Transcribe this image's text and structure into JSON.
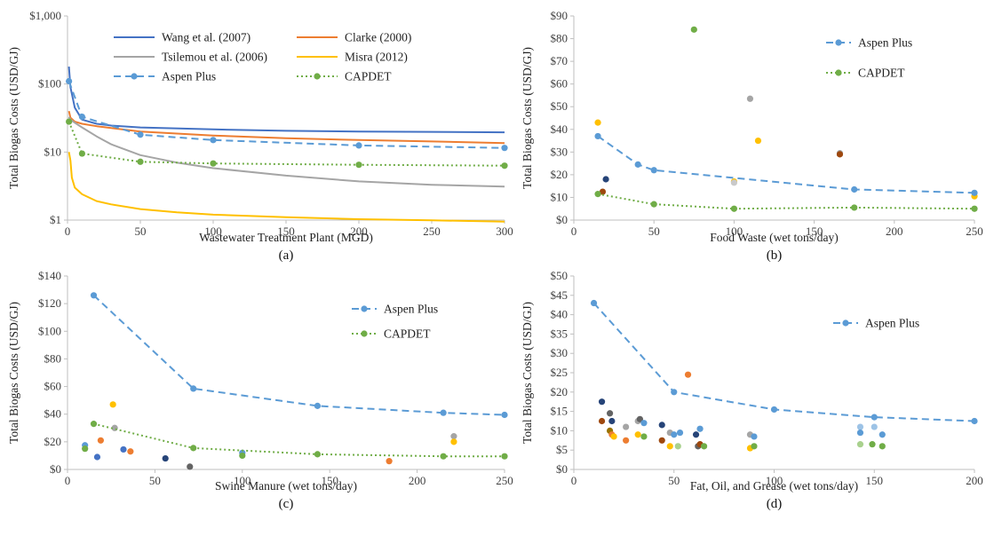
{
  "chart_data": [
    {
      "type": "line",
      "panel_label": "(a)",
      "xlabel": "Wastewater Treatment Plant (MGD)",
      "ylabel": "Total Biogas Costs (USD/GJ)",
      "log_y": true,
      "xlim": [
        0,
        300
      ],
      "ylim": [
        1,
        1000
      ],
      "x_ticks": [
        "0",
        "50",
        "100",
        "150",
        "200",
        "250",
        "300"
      ],
      "y_ticks": [
        "$1",
        "$10",
        "$100",
        "$1,000"
      ],
      "legend_position": "top",
      "grid": false,
      "series": [
        {
          "name": "Wang et al. (2007)",
          "style": "solid",
          "color": "#4472c4",
          "x": [
            1,
            2,
            5,
            10,
            20,
            30,
            50,
            100,
            150,
            200,
            250,
            300
          ],
          "y": [
            180,
            90,
            45,
            30,
            26,
            24.5,
            23,
            21.5,
            20.5,
            20,
            19.8,
            19.5
          ]
        },
        {
          "name": "Clarke (2000)",
          "style": "solid",
          "color": "#ed7d31",
          "x": [
            1,
            2,
            5,
            10,
            20,
            30,
            50,
            100,
            150,
            200,
            250,
            300
          ],
          "y": [
            40,
            32,
            28,
            26,
            24,
            22.5,
            20,
            17.5,
            16,
            15,
            14.3,
            13.5
          ]
        },
        {
          "name": "Tsilemou et al. (2006)",
          "style": "solid",
          "color": "#a5a5a5",
          "x": [
            1,
            2,
            5,
            10,
            20,
            30,
            50,
            75,
            100,
            150,
            200,
            250,
            300
          ],
          "y": [
            33,
            30,
            27,
            23,
            17,
            13,
            9,
            7,
            5.8,
            4.5,
            3.7,
            3.3,
            3.1
          ]
        },
        {
          "name": "Misra (2012)",
          "style": "solid",
          "color": "#ffc000",
          "x": [
            1,
            2,
            3,
            5,
            10,
            20,
            30,
            50,
            75,
            100,
            150,
            200,
            250,
            300
          ],
          "y": [
            10,
            7.5,
            4.2,
            3,
            2.4,
            1.9,
            1.7,
            1.45,
            1.3,
            1.2,
            1.1,
            1.03,
            0.99,
            0.95
          ]
        },
        {
          "name": "Aspen Plus",
          "style": "dashed-markers",
          "color": "#5b9bd5",
          "x": [
            1,
            10,
            50,
            100,
            200,
            300
          ],
          "y": [
            110,
            33,
            18,
            15,
            12.5,
            11.5
          ]
        },
        {
          "name": "CAPDET",
          "style": "dotted-markers",
          "color": "#70ad47",
          "x": [
            1,
            10,
            50,
            100,
            200,
            300
          ],
          "y": [
            28,
            9.5,
            7.2,
            6.8,
            6.5,
            6.3
          ]
        }
      ]
    },
    {
      "type": "line",
      "panel_label": "(b)",
      "xlabel": "Food Waste (wet tons/day)",
      "ylabel": "Total Biogas Costs (USD/GJ)",
      "xlim": [
        0,
        250
      ],
      "ylim": [
        0,
        90
      ],
      "x_ticks": [
        "0",
        "50",
        "100",
        "150",
        "200",
        "250"
      ],
      "y_ticks": [
        "$0",
        "$10",
        "$20",
        "$30",
        "$40",
        "$50",
        "$60",
        "$70",
        "$80",
        "$90"
      ],
      "legend_position": "top-right",
      "grid": false,
      "series": [
        {
          "name": "Aspen Plus",
          "style": "dashed-markers",
          "color": "#5b9bd5",
          "x": [
            15,
            40,
            50,
            175,
            250
          ],
          "y": [
            37,
            24.5,
            22,
            13.5,
            12
          ]
        },
        {
          "name": "CAPDET",
          "style": "dotted-markers",
          "color": "#70ad47",
          "x": [
            15,
            50,
            100,
            175,
            250
          ],
          "y": [
            11.5,
            7,
            5,
            5.5,
            5
          ]
        }
      ],
      "scatter": [
        {
          "x": 15,
          "y": 43,
          "color": "#ffc000"
        },
        {
          "x": 20,
          "y": 18,
          "color": "#264478"
        },
        {
          "x": 18,
          "y": 12.5,
          "color": "#9e480e"
        },
        {
          "x": 75,
          "y": 84,
          "color": "#70ad47"
        },
        {
          "x": 110,
          "y": 53.5,
          "color": "#a5a5a5"
        },
        {
          "x": 115,
          "y": 35,
          "color": "#ffc000"
        },
        {
          "x": 100,
          "y": 17,
          "color": "#ffc000"
        },
        {
          "x": 100,
          "y": 16.5,
          "color": "#c9c9c9"
        },
        {
          "x": 166,
          "y": 29.5,
          "color": "#a5a5a5"
        },
        {
          "x": 166,
          "y": 29,
          "color": "#9e480e"
        },
        {
          "x": 250,
          "y": 10.5,
          "color": "#ffc000"
        }
      ]
    },
    {
      "type": "line",
      "panel_label": "(c)",
      "xlabel": "Swine Manure (wet tons/day)",
      "ylabel": "Total Biogas Costs (USD/GJ)",
      "xlim": [
        0,
        250
      ],
      "ylim": [
        0,
        140
      ],
      "x_ticks": [
        "0",
        "50",
        "100",
        "150",
        "200",
        "250"
      ],
      "y_ticks": [
        "$0",
        "$20",
        "$40",
        "$60",
        "$80",
        "$100",
        "$120",
        "$140"
      ],
      "legend_position": "top-right",
      "grid": false,
      "series": [
        {
          "name": "Aspen Plus",
          "style": "dashed-markers",
          "color": "#5b9bd5",
          "x": [
            15,
            72,
            143,
            215,
            250
          ],
          "y": [
            126,
            58.5,
            46,
            41,
            39.5
          ]
        },
        {
          "name": "CAPDET",
          "style": "dotted-markers",
          "color": "#70ad47",
          "x": [
            15,
            72,
            143,
            215,
            250
          ],
          "y": [
            33,
            15.5,
            11,
            9.5,
            9.5
          ]
        }
      ],
      "scatter": [
        {
          "x": 10,
          "y": 17.5,
          "color": "#5b9bd5"
        },
        {
          "x": 10,
          "y": 15,
          "color": "#70ad47"
        },
        {
          "x": 17,
          "y": 9,
          "color": "#4472c4"
        },
        {
          "x": 19,
          "y": 21,
          "color": "#ed7d31"
        },
        {
          "x": 26,
          "y": 47,
          "color": "#ffc000"
        },
        {
          "x": 27,
          "y": 30,
          "color": "#a5a5a5"
        },
        {
          "x": 32,
          "y": 14.5,
          "color": "#4472c4"
        },
        {
          "x": 36,
          "y": 13,
          "color": "#ed7d31"
        },
        {
          "x": 56,
          "y": 8,
          "color": "#264478"
        },
        {
          "x": 70,
          "y": 2,
          "color": "#636363"
        },
        {
          "x": 100,
          "y": 12,
          "color": "#5b9bd5"
        },
        {
          "x": 100,
          "y": 10,
          "color": "#70ad47"
        },
        {
          "x": 184,
          "y": 6,
          "color": "#ed7d31"
        },
        {
          "x": 221,
          "y": 24,
          "color": "#a5a5a5"
        },
        {
          "x": 221,
          "y": 20,
          "color": "#ffc000"
        }
      ]
    },
    {
      "type": "line",
      "panel_label": "(d)",
      "xlabel": "Fat, Oil, and Grease (wet tons/day)",
      "ylabel": "Total Biogas Costs (USD/GJ)",
      "xlim": [
        0,
        200
      ],
      "ylim": [
        0,
        50
      ],
      "x_ticks": [
        "0",
        "50",
        "100",
        "150",
        "200"
      ],
      "y_ticks": [
        "$0",
        "$5",
        "$10",
        "$15",
        "$20",
        "$25",
        "$30",
        "$35",
        "$40",
        "$45",
        "$50"
      ],
      "legend_position": "top-right",
      "grid": false,
      "series": [
        {
          "name": "Aspen Plus",
          "style": "dashed-markers",
          "color": "#5b9bd5",
          "x": [
            10,
            50,
            100,
            150,
            200
          ],
          "y": [
            43,
            20,
            15.5,
            13.5,
            12.5
          ]
        }
      ],
      "scatter": [
        {
          "x": 14,
          "y": 17.5,
          "color": "#264478"
        },
        {
          "x": 14,
          "y": 12.5,
          "color": "#9e480e"
        },
        {
          "x": 18,
          "y": 14.5,
          "color": "#636363"
        },
        {
          "x": 19,
          "y": 12.5,
          "color": "#264478"
        },
        {
          "x": 18,
          "y": 10,
          "color": "#997300"
        },
        {
          "x": 19,
          "y": 9,
          "color": "#ed7d31"
        },
        {
          "x": 20,
          "y": 8.5,
          "color": "#ffc000"
        },
        {
          "x": 26,
          "y": 7.5,
          "color": "#ed7d31"
        },
        {
          "x": 26,
          "y": 11,
          "color": "#a5a5a5"
        },
        {
          "x": 32,
          "y": 12.5,
          "color": "#a5a5a5"
        },
        {
          "x": 33,
          "y": 13,
          "color": "#636363"
        },
        {
          "x": 35,
          "y": 12,
          "color": "#5b9bd5"
        },
        {
          "x": 32,
          "y": 9,
          "color": "#ffc000"
        },
        {
          "x": 35,
          "y": 8.5,
          "color": "#70ad47"
        },
        {
          "x": 44,
          "y": 11.5,
          "color": "#264478"
        },
        {
          "x": 44,
          "y": 7.5,
          "color": "#9e480e"
        },
        {
          "x": 48,
          "y": 9.5,
          "color": "#a5a5a5"
        },
        {
          "x": 50,
          "y": 9,
          "color": "#5b9bd5"
        },
        {
          "x": 53,
          "y": 9.5,
          "color": "#5b9bd5"
        },
        {
          "x": 48,
          "y": 6,
          "color": "#ffc000"
        },
        {
          "x": 52,
          "y": 6,
          "color": "#a9d18e"
        },
        {
          "x": 57,
          "y": 24.5,
          "color": "#ed7d31"
        },
        {
          "x": 61,
          "y": 9,
          "color": "#264478"
        },
        {
          "x": 63,
          "y": 10.5,
          "color": "#5b9bd5"
        },
        {
          "x": 62,
          "y": 6,
          "color": "#636363"
        },
        {
          "x": 63,
          "y": 6.5,
          "color": "#9e480e"
        },
        {
          "x": 65,
          "y": 6,
          "color": "#70ad47"
        },
        {
          "x": 88,
          "y": 9,
          "color": "#a5a5a5"
        },
        {
          "x": 90,
          "y": 8.5,
          "color": "#5b9bd5"
        },
        {
          "x": 88,
          "y": 5.5,
          "color": "#ffc000"
        },
        {
          "x": 90,
          "y": 6,
          "color": "#70ad47"
        },
        {
          "x": 143,
          "y": 11,
          "color": "#9dc3e6"
        },
        {
          "x": 143,
          "y": 9.5,
          "color": "#5b9bd5"
        },
        {
          "x": 143,
          "y": 6.5,
          "color": "#a9d18e"
        },
        {
          "x": 150,
          "y": 11,
          "color": "#9dc3e6"
        },
        {
          "x": 149,
          "y": 6.5,
          "color": "#70ad47"
        },
        {
          "x": 154,
          "y": 9,
          "color": "#5b9bd5"
        },
        {
          "x": 154,
          "y": 6,
          "color": "#70ad47"
        }
      ]
    }
  ]
}
